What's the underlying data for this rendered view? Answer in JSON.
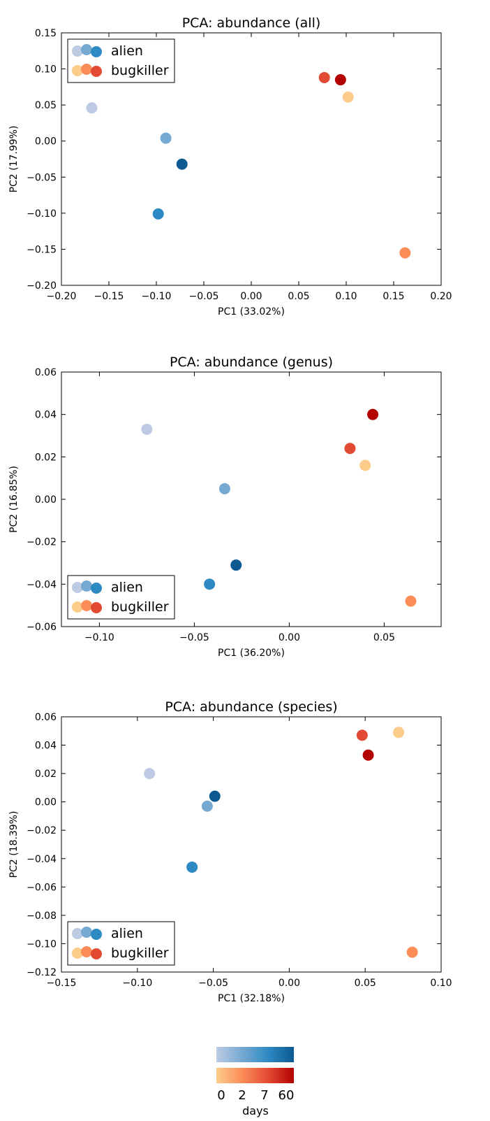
{
  "colors": {
    "alien": [
      "#bccbe3",
      "#76a9d2",
      "#2e8ac3",
      "#0d5a92"
    ],
    "bugkiller": [
      "#fdcc8a",
      "#fc8d59",
      "#e34a33",
      "#b30000"
    ]
  },
  "colorbar": {
    "ticks": [
      "0",
      "2",
      "7",
      "60"
    ],
    "label": "days"
  },
  "chart_data": [
    {
      "type": "scatter",
      "title": "PCA: abundance (all)",
      "xlabel": "PC1 (33.02%)",
      "ylabel": "PC2 (17.99%)",
      "xlim": [
        -0.2,
        0.2
      ],
      "ylim": [
        -0.2,
        0.15
      ],
      "xticks": [
        -0.2,
        -0.15,
        -0.1,
        -0.05,
        0.0,
        0.05,
        0.1,
        0.15,
        0.2
      ],
      "yticks": [
        -0.2,
        -0.15,
        -0.1,
        -0.05,
        0.0,
        0.05,
        0.1,
        0.15
      ],
      "xtick_labels": [
        "−0.20",
        "−0.15",
        "−0.10",
        "−0.05",
        "0.00",
        "0.05",
        "0.10",
        "0.15",
        "0.20"
      ],
      "ytick_labels": [
        "−0.20",
        "−0.15",
        "−0.10",
        "−0.05",
        "0.00",
        "0.05",
        "0.10",
        "0.15"
      ],
      "legend_position": "upper-left",
      "series": [
        {
          "name": "alien",
          "days": [
            0,
            2,
            7,
            60
          ],
          "x": [
            -0.168,
            -0.09,
            -0.098,
            -0.073
          ],
          "y": [
            0.046,
            0.004,
            -0.101,
            -0.032
          ]
        },
        {
          "name": "bugkiller",
          "days": [
            0,
            2,
            7,
            60
          ],
          "x": [
            0.102,
            0.162,
            0.077,
            0.094
          ],
          "y": [
            0.061,
            -0.155,
            0.088,
            0.085
          ]
        }
      ]
    },
    {
      "type": "scatter",
      "title": "PCA: abundance (genus)",
      "xlabel": "PC1 (36.20%)",
      "ylabel": "PC2 (16.85%)",
      "xlim": [
        -0.12,
        0.08
      ],
      "ylim": [
        -0.06,
        0.06
      ],
      "xticks": [
        -0.1,
        -0.05,
        0.0,
        0.05
      ],
      "yticks": [
        -0.06,
        -0.04,
        -0.02,
        0.0,
        0.02,
        0.04,
        0.06
      ],
      "xtick_labels": [
        "−0.10",
        "−0.05",
        "0.00",
        "0.05"
      ],
      "ytick_labels": [
        "−0.06",
        "−0.04",
        "−0.02",
        "0.00",
        "0.02",
        "0.04",
        "0.06"
      ],
      "legend_position": "lower-left",
      "series": [
        {
          "name": "alien",
          "days": [
            0,
            2,
            7,
            60
          ],
          "x": [
            -0.075,
            -0.034,
            -0.042,
            -0.028
          ],
          "y": [
            0.033,
            0.005,
            -0.04,
            -0.031
          ]
        },
        {
          "name": "bugkiller",
          "days": [
            0,
            2,
            7,
            60
          ],
          "x": [
            0.04,
            0.064,
            0.032,
            0.044
          ],
          "y": [
            0.016,
            -0.048,
            0.024,
            0.04
          ]
        }
      ]
    },
    {
      "type": "scatter",
      "title": "PCA: abundance (species)",
      "xlabel": "PC1 (32.18%)",
      "ylabel": "PC2 (18.39%)",
      "xlim": [
        -0.15,
        0.1
      ],
      "ylim": [
        -0.12,
        0.06
      ],
      "xticks": [
        -0.15,
        -0.1,
        -0.05,
        0.0,
        0.05,
        0.1
      ],
      "yticks": [
        -0.12,
        -0.1,
        -0.08,
        -0.06,
        -0.04,
        -0.02,
        0.0,
        0.02,
        0.04,
        0.06
      ],
      "xtick_labels": [
        "−0.15",
        "−0.10",
        "−0.05",
        "0.00",
        "0.05",
        "0.10"
      ],
      "ytick_labels": [
        "−0.12",
        "−0.10",
        "−0.08",
        "−0.06",
        "−0.04",
        "−0.02",
        "0.00",
        "0.02",
        "0.04",
        "0.06"
      ],
      "legend_position": "lower-left",
      "series": [
        {
          "name": "alien",
          "days": [
            0,
            2,
            7,
            60
          ],
          "x": [
            -0.092,
            -0.054,
            -0.064,
            -0.049
          ],
          "y": [
            0.02,
            -0.003,
            -0.046,
            0.004
          ]
        },
        {
          "name": "bugkiller",
          "days": [
            0,
            2,
            7,
            60
          ],
          "x": [
            0.072,
            0.081,
            0.048,
            0.052
          ],
          "y": [
            0.049,
            -0.106,
            0.047,
            0.033
          ]
        }
      ]
    }
  ]
}
